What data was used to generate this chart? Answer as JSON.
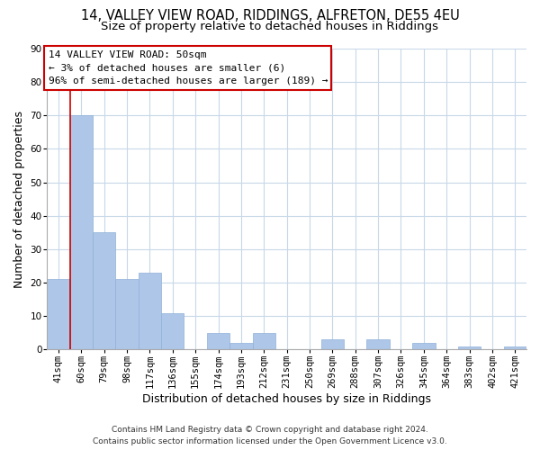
{
  "title_line1": "14, VALLEY VIEW ROAD, RIDDINGS, ALFRETON, DE55 4EU",
  "title_line2": "Size of property relative to detached houses in Riddings",
  "xlabel": "Distribution of detached houses by size in Riddings",
  "ylabel": "Number of detached properties",
  "footer_line1": "Contains HM Land Registry data © Crown copyright and database right 2024.",
  "footer_line2": "Contains public sector information licensed under the Open Government Licence v3.0.",
  "bin_labels": [
    "41sqm",
    "60sqm",
    "79sqm",
    "98sqm",
    "117sqm",
    "136sqm",
    "155sqm",
    "174sqm",
    "193sqm",
    "212sqm",
    "231sqm",
    "250sqm",
    "269sqm",
    "288sqm",
    "307sqm",
    "326sqm",
    "345sqm",
    "364sqm",
    "383sqm",
    "402sqm",
    "421sqm"
  ],
  "bar_heights": [
    21,
    70,
    35,
    21,
    23,
    11,
    0,
    5,
    2,
    5,
    0,
    0,
    3,
    0,
    3,
    0,
    2,
    0,
    1,
    0,
    1
  ],
  "bar_color": "#aec6e8",
  "bar_edge_color": "#8fb0d8",
  "annotation_title": "14 VALLEY VIEW ROAD: 50sqm",
  "annotation_line2": "← 3% of detached houses are smaller (6)",
  "annotation_line3": "96% of semi-detached houses are larger (189) →",
  "annotation_box_color": "#ffffff",
  "annotation_box_edge": "#cc0000",
  "ylim": [
    0,
    90
  ],
  "yticks": [
    0,
    10,
    20,
    30,
    40,
    50,
    60,
    70,
    80,
    90
  ],
  "background_color": "#ffffff",
  "grid_color": "#c8d8e8",
  "red_line_color": "#cc0000",
  "title_fontsize": 10.5,
  "subtitle_fontsize": 9.5,
  "axis_label_fontsize": 9,
  "tick_fontsize": 7.5,
  "annotation_fontsize": 8,
  "footer_fontsize": 6.5
}
